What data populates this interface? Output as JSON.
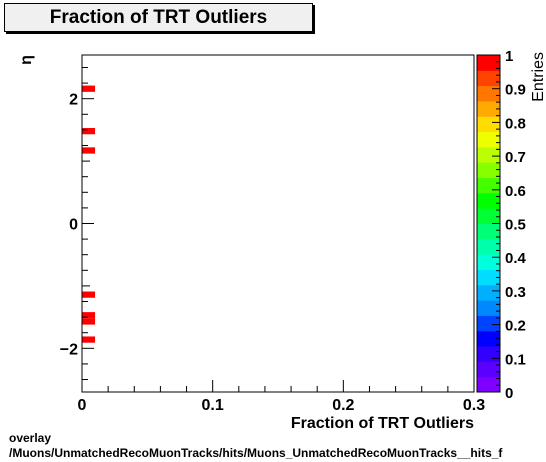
{
  "chart_data": {
    "type": "heatmap",
    "title": "Fraction of TRT Outliers",
    "xlabel": "Fraction of TRT Outliers",
    "ylabel": "η",
    "zlabel": "Entries",
    "xlim": [
      0,
      0.3
    ],
    "ylim": [
      -2.7,
      2.7
    ],
    "zlim": [
      0,
      1
    ],
    "x_ticks": [
      0,
      0.1,
      0.2,
      0.3
    ],
    "x_tick_labels": [
      "0",
      "0.1",
      "0.2",
      "0.3"
    ],
    "y_ticks": [
      -2,
      0,
      2
    ],
    "y_tick_labels": [
      "−2",
      "0",
      "2"
    ],
    "z_ticks": [
      0,
      0.1,
      0.2,
      0.3,
      0.4,
      0.5,
      0.6,
      0.7,
      0.8,
      0.9,
      1
    ],
    "z_tick_labels": [
      "0",
      "0.1",
      "0.2",
      "0.3",
      "0.4",
      "0.5",
      "0.6",
      "0.7",
      "0.8",
      "0.9",
      "1"
    ],
    "bin_width_x": 0.01,
    "cells": [
      {
        "x": 0.0,
        "y": 2.16,
        "h": 0.1,
        "value": 1
      },
      {
        "x": 0.0,
        "y": 1.48,
        "h": 0.1,
        "value": 1
      },
      {
        "x": 0.0,
        "y": 1.17,
        "h": 0.1,
        "value": 1
      },
      {
        "x": 0.0,
        "y": -1.14,
        "h": 0.1,
        "value": 1
      },
      {
        "x": 0.0,
        "y": -1.47,
        "h": 0.1,
        "value": 1
      },
      {
        "x": 0.0,
        "y": -1.57,
        "h": 0.1,
        "value": 1
      },
      {
        "x": 0.0,
        "y": -1.86,
        "h": 0.1,
        "value": 1
      }
    ],
    "palette": [
      "#7f00ff",
      "#5a00ff",
      "#3300ff",
      "#0000ff",
      "#0044ff",
      "#0088ff",
      "#00b0ff",
      "#00ddff",
      "#00ffdd",
      "#00ffaa",
      "#00ff77",
      "#00ff33",
      "#00ff00",
      "#44ff00",
      "#88ff00",
      "#bbff00",
      "#eeff00",
      "#ffdd00",
      "#ffaa00",
      "#ff7700",
      "#ff4400",
      "#ff0000"
    ]
  },
  "footer": {
    "line1": "overlay",
    "line2": "/Muons/UnmatchedRecoMuonTracks/hits/Muons_UnmatchedRecoMuonTracks__hits_f"
  }
}
